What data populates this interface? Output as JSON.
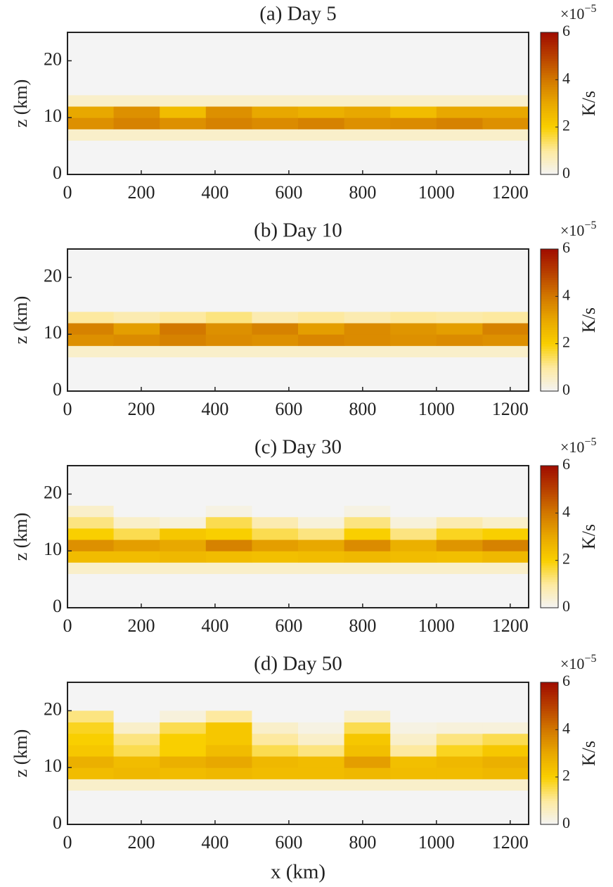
{
  "chart_data": [
    {
      "type": "heatmap",
      "title": "(a) Day 5",
      "ylabel": "z (km)",
      "x": [
        62.5,
        187.5,
        312.5,
        437.5,
        562.5,
        687.5,
        812.5,
        937.5,
        1062.5,
        1187.5
      ],
      "z": [
        7,
        9,
        11,
        13,
        15,
        17,
        19
      ],
      "values": [
        [
          0.5,
          0.5,
          0.5,
          0.5,
          0.5,
          0.5,
          0.5,
          0.5,
          0.5,
          0.5
        ],
        [
          3.5,
          3.8,
          3.5,
          3.8,
          3.6,
          3.8,
          3.5,
          3.6,
          3.8,
          3.5
        ],
        [
          3,
          3.5,
          2.5,
          3.5,
          3,
          2.8,
          3,
          2.5,
          3,
          3
        ],
        [
          0.5,
          0.5,
          0.5,
          0.5,
          0.5,
          0.5,
          0.5,
          0.5,
          0.5,
          0.5
        ],
        [
          0,
          0,
          0,
          0,
          0,
          0,
          0,
          0,
          0,
          0
        ],
        [
          0,
          0,
          0,
          0,
          0,
          0,
          0,
          0,
          0,
          0
        ],
        [
          0,
          0,
          0,
          0,
          0,
          0,
          0,
          0,
          0,
          0
        ]
      ],
      "xlim": [
        0,
        1250
      ],
      "ylim": [
        0,
        25
      ],
      "xticks": [
        0,
        200,
        400,
        600,
        800,
        1000,
        1200
      ],
      "yticks": [
        0,
        10,
        20
      ],
      "clim": [
        0,
        6
      ],
      "cticks": [
        0,
        2,
        4,
        6
      ],
      "colorbar_label": "K/s",
      "colorbar_scale": "×10",
      "colorbar_scale_power": "−5",
      "colormap": [
        "#f4f4f4",
        "#fde9a0",
        "#f9cf00",
        "#e8a800",
        "#d27800",
        "#b84000",
        "#a00c00"
      ]
    },
    {
      "type": "heatmap",
      "title": "(b) Day 10",
      "ylabel": "z (km)",
      "x": [
        62.5,
        187.5,
        312.5,
        437.5,
        562.5,
        687.5,
        812.5,
        937.5,
        1062.5,
        1187.5
      ],
      "z": [
        7,
        9,
        11,
        13,
        15,
        17,
        19
      ],
      "values": [
        [
          0.5,
          0.5,
          0.5,
          0.5,
          0.5,
          0.5,
          0.5,
          0.5,
          0.5,
          0.5
        ],
        [
          3.5,
          3.6,
          3.8,
          3.6,
          3.5,
          3.7,
          3.6,
          3.5,
          3.6,
          3.5
        ],
        [
          3.8,
          3.2,
          4,
          3.5,
          3.8,
          3.2,
          3.6,
          3.4,
          3.2,
          3.8
        ],
        [
          1,
          0.8,
          1,
          1.2,
          0.8,
          1,
          0.8,
          1,
          0.9,
          1
        ],
        [
          0,
          0,
          0,
          0,
          0,
          0,
          0,
          0,
          0,
          0
        ],
        [
          0,
          0,
          0,
          0,
          0,
          0,
          0,
          0,
          0,
          0
        ],
        [
          0,
          0,
          0,
          0,
          0,
          0,
          0,
          0,
          0,
          0
        ]
      ],
      "xlim": [
        0,
        1250
      ],
      "ylim": [
        0,
        25
      ],
      "xticks": [
        0,
        200,
        400,
        600,
        800,
        1000,
        1200
      ],
      "yticks": [
        0,
        10,
        20
      ],
      "clim": [
        0,
        6
      ],
      "cticks": [
        0,
        2,
        4,
        6
      ],
      "colorbar_label": "K/s",
      "colorbar_scale": "×10",
      "colorbar_scale_power": "−5",
      "colormap": [
        "#f4f4f4",
        "#fde9a0",
        "#f9cf00",
        "#e8a800",
        "#d27800",
        "#b84000",
        "#a00c00"
      ]
    },
    {
      "type": "heatmap",
      "title": "(c) Day 30",
      "ylabel": "z (km)",
      "x": [
        62.5,
        187.5,
        312.5,
        437.5,
        562.5,
        687.5,
        812.5,
        937.5,
        1062.5,
        1187.5
      ],
      "z": [
        7,
        9,
        11,
        13,
        15,
        17,
        19
      ],
      "values": [
        [
          0.5,
          0.5,
          0.5,
          0.5,
          0.5,
          0.5,
          0.5,
          0.5,
          0.5,
          0.5
        ],
        [
          2.5,
          2.5,
          2.6,
          2.5,
          2.4,
          2.5,
          2.6,
          2.5,
          2.4,
          2.6
        ],
        [
          3.5,
          3.2,
          3,
          3.8,
          3.2,
          3,
          3.6,
          2.8,
          3.4,
          3.8
        ],
        [
          2,
          1.5,
          2.2,
          2,
          1.5,
          1.2,
          2,
          1.2,
          1.8,
          2
        ],
        [
          1.2,
          0.5,
          0.3,
          1.5,
          0.8,
          0.3,
          1.2,
          0.3,
          0.8,
          0.5
        ],
        [
          0.5,
          0,
          0,
          0.2,
          0,
          0,
          0.2,
          0,
          0,
          0
        ],
        [
          0,
          0,
          0,
          0,
          0,
          0,
          0,
          0,
          0,
          0
        ]
      ],
      "xlim": [
        0,
        1250
      ],
      "ylim": [
        0,
        25
      ],
      "xticks": [
        0,
        200,
        400,
        600,
        800,
        1000,
        1200
      ],
      "yticks": [
        0,
        10,
        20
      ],
      "clim": [
        0,
        6
      ],
      "cticks": [
        0,
        2,
        4,
        6
      ],
      "colorbar_label": "K/s",
      "colorbar_scale": "×10",
      "colorbar_scale_power": "−5",
      "colormap": [
        "#f4f4f4",
        "#fde9a0",
        "#f9cf00",
        "#e8a800",
        "#d27800",
        "#b84000",
        "#a00c00"
      ]
    },
    {
      "type": "heatmap",
      "title": "(d) Day 50",
      "xlabel": "x (km)",
      "ylabel": "z (km)",
      "x": [
        62.5,
        187.5,
        312.5,
        437.5,
        562.5,
        687.5,
        812.5,
        937.5,
        1062.5,
        1187.5
      ],
      "z": [
        7,
        9,
        11,
        13,
        15,
        17,
        19
      ],
      "values": [
        [
          0.5,
          0.5,
          0.5,
          0.5,
          0.5,
          0.5,
          0.5,
          0.5,
          0.5,
          0.5
        ],
        [
          2.5,
          2.6,
          2.5,
          2.6,
          2.5,
          2.5,
          2.6,
          2.5,
          2.5,
          2.6
        ],
        [
          2.8,
          2.5,
          2.8,
          3,
          2.6,
          2.5,
          3.2,
          2.4,
          2.6,
          2.8
        ],
        [
          2.2,
          1.5,
          2,
          2.5,
          1.5,
          1.2,
          2.4,
          1,
          1.8,
          2.2
        ],
        [
          2,
          1.2,
          2,
          2.2,
          1,
          0.5,
          2.2,
          0.5,
          1.2,
          1.5
        ],
        [
          1.8,
          0.5,
          1.5,
          2.2,
          0.5,
          0.2,
          1.5,
          0.2,
          0.3,
          0.3
        ],
        [
          1.2,
          0,
          0.3,
          1,
          0,
          0,
          0.5,
          0,
          0,
          0
        ]
      ],
      "xlim": [
        0,
        1250
      ],
      "ylim": [
        0,
        25
      ],
      "xticks": [
        0,
        200,
        400,
        600,
        800,
        1000,
        1200
      ],
      "yticks": [
        0,
        10,
        20
      ],
      "clim": [
        0,
        6
      ],
      "cticks": [
        0,
        2,
        4,
        6
      ],
      "colorbar_label": "K/s",
      "colorbar_scale": "×10",
      "colorbar_scale_power": "−5",
      "colormap": [
        "#f4f4f4",
        "#fde9a0",
        "#f9cf00",
        "#e8a800",
        "#d27800",
        "#b84000",
        "#a00c00"
      ]
    }
  ]
}
